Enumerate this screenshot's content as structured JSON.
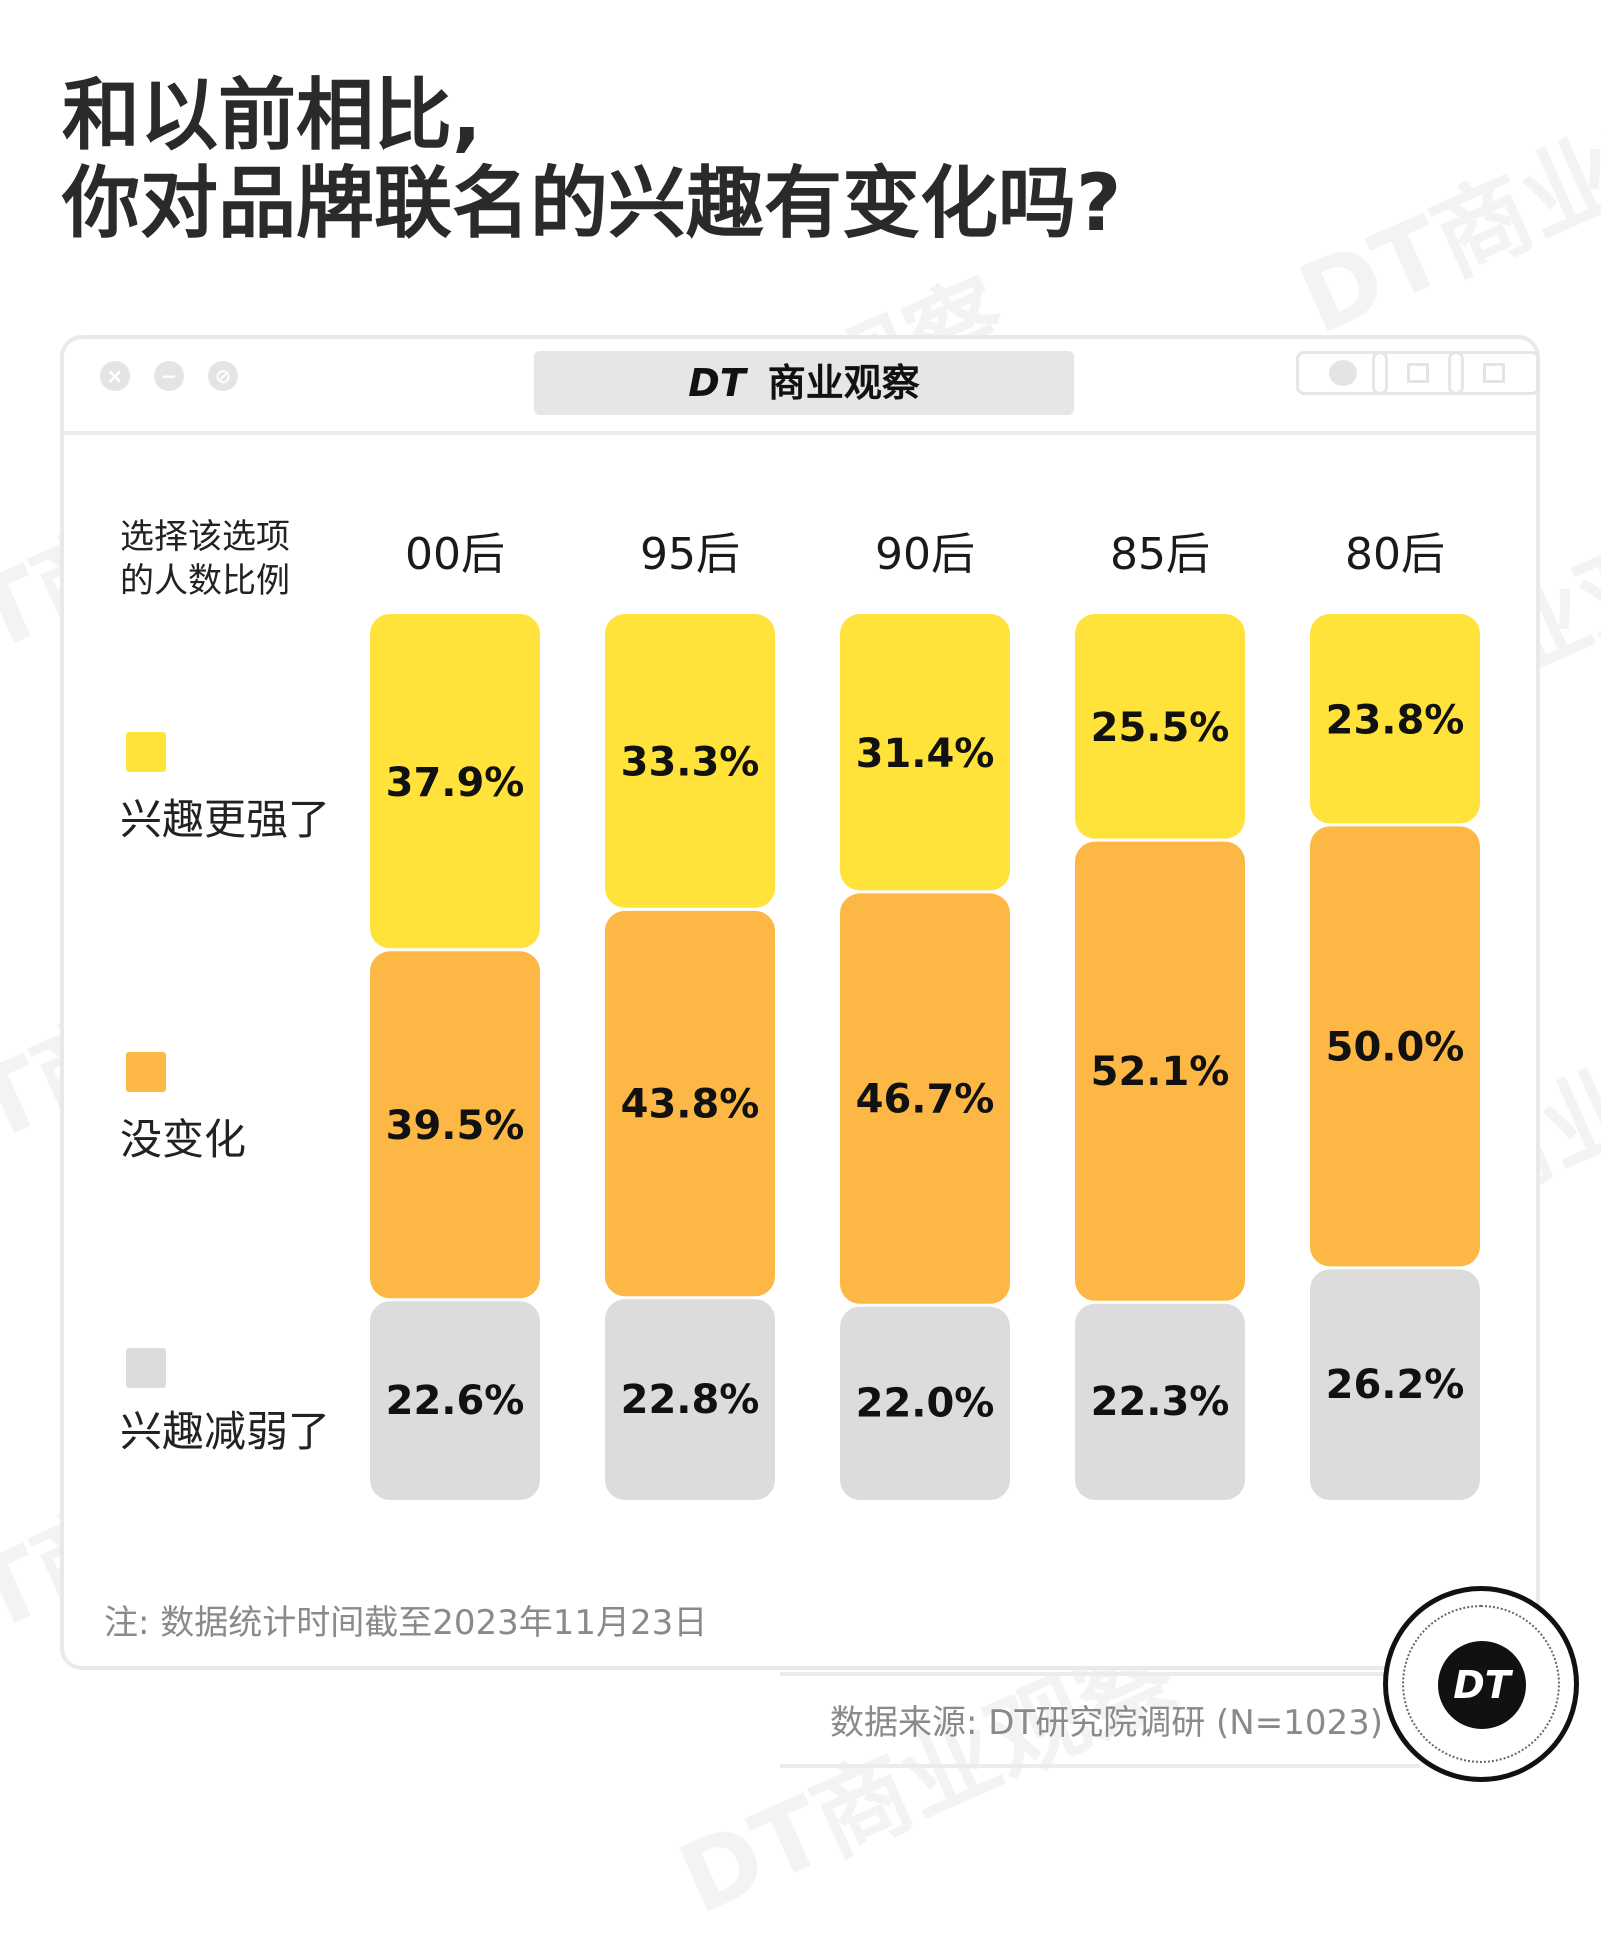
{
  "title_line1": "和以前相比,",
  "title_line2": "你对品牌联名的兴趣有变化吗?",
  "brand": {
    "dt": "DT",
    "name": "商业观察"
  },
  "watermark": "DT商业观察",
  "window_buttons": [
    "close-icon",
    "minimize-icon",
    "block-icon"
  ],
  "toolbar_icons": [
    "record-icon",
    "share-icon",
    "copy-icon"
  ],
  "y_caption": "选择该选项的人数比例",
  "legend": [
    {
      "label": "兴趣更强了",
      "color": "#FFE23A"
    },
    {
      "label": "没变化",
      "color": "#FDB744"
    },
    {
      "label": "兴趣减弱了",
      "color": "#DCDCDC"
    }
  ],
  "chart_data": {
    "type": "bar",
    "stacked": true,
    "categories": [
      "00后",
      "95后",
      "90后",
      "85后",
      "80后"
    ],
    "series": [
      {
        "name": "兴趣更强了",
        "color": "#FFE23A",
        "values": [
          37.9,
          33.3,
          31.4,
          25.5,
          23.8
        ],
        "labels": [
          "37.9%",
          "33.3%",
          "31.4%",
          "25.5%",
          "23.8%"
        ]
      },
      {
        "name": "没变化",
        "color": "#FDB744",
        "values": [
          39.5,
          43.8,
          46.7,
          52.1,
          50.0
        ],
        "labels": [
          "39.5%",
          "43.8%",
          "46.7%",
          "52.1%",
          "50.0%"
        ]
      },
      {
        "name": "兴趣减弱了",
        "color": "#DCDCDC",
        "values": [
          22.6,
          22.8,
          22.0,
          22.3,
          26.2
        ],
        "labels": [
          "22.6%",
          "22.8%",
          "22.0%",
          "22.3%",
          "26.2%"
        ]
      }
    ],
    "ylabel": "选择该选项的人数比例",
    "unit": "%",
    "legend_position": "left"
  },
  "note": "注: 数据统计时间截至2023年11月23日",
  "source": "数据来源: DT研究院调研 (N=1023)",
  "logo_text": "DT"
}
